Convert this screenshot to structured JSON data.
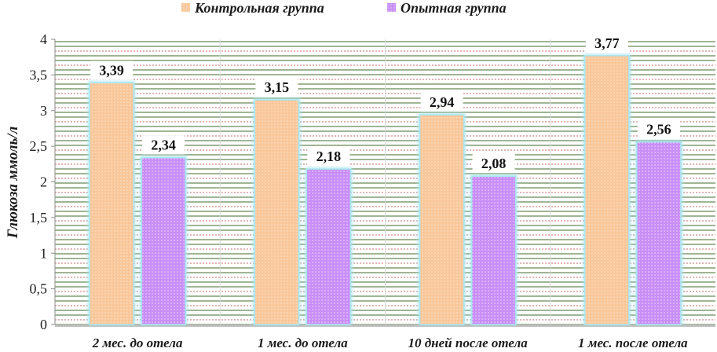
{
  "chart_data": {
    "type": "bar",
    "categories": [
      "2 мес. до  отела",
      "1 мес. до  отела",
      "10 дней после отела",
      "1 мес. после отела"
    ],
    "series": [
      {
        "name": "Контрольная группа",
        "values": [
          3.39,
          3.15,
          2.94,
          3.77
        ],
        "labels": [
          "3,39",
          "3,15",
          "2,94",
          "3,77"
        ],
        "color": "#f9c79a"
      },
      {
        "name": "Опытная группа",
        "values": [
          2.34,
          2.18,
          2.08,
          2.56
        ],
        "labels": [
          "2,34",
          "2,18",
          "2,08",
          "2,56"
        ],
        "color": "#c98ef7"
      }
    ],
    "ylabel": "Глюкоза ммоль/л",
    "ylim": [
      0,
      4
    ],
    "yticks": [
      0,
      0.5,
      1,
      1.5,
      2,
      2.5,
      3,
      3.5,
      4
    ],
    "ytick_labels": [
      "0",
      "0,5",
      "1",
      "1,5",
      "2",
      "2,5",
      "3",
      "3,5",
      "4"
    ],
    "grid": true,
    "legend_position": "top",
    "colors": {
      "grid_green": "#3f6b2a",
      "grid_red": "#c46a6a",
      "bar_glow": "#a9e6f0"
    }
  }
}
